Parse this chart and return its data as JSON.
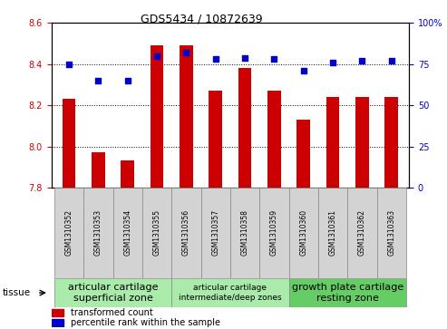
{
  "title": "GDS5434 / 10872639",
  "samples": [
    "GSM1310352",
    "GSM1310353",
    "GSM1310354",
    "GSM1310355",
    "GSM1310356",
    "GSM1310357",
    "GSM1310358",
    "GSM1310359",
    "GSM1310360",
    "GSM1310361",
    "GSM1310362",
    "GSM1310363"
  ],
  "transformed_count": [
    8.23,
    7.97,
    7.93,
    8.49,
    8.49,
    8.27,
    8.38,
    8.27,
    8.13,
    8.24,
    8.24,
    8.24
  ],
  "percentile_rank": [
    75,
    65,
    65,
    80,
    82,
    78,
    79,
    78,
    71,
    76,
    77,
    77
  ],
  "ylim_left": [
    7.8,
    8.6
  ],
  "ylim_right": [
    0,
    100
  ],
  "yticks_left": [
    7.8,
    8.0,
    8.2,
    8.4,
    8.6
  ],
  "yticks_right": [
    0,
    25,
    50,
    75,
    100
  ],
  "bar_color": "#cc0000",
  "dot_color": "#0000cc",
  "tissue_groups": [
    {
      "label": "articular cartilage\nsuperficial zone",
      "start": 0,
      "end": 4,
      "color": "#aaeaaa",
      "fontsize": 8
    },
    {
      "label": "articular cartilage\nintermediate/deep zones",
      "start": 4,
      "end": 8,
      "color": "#aaeaaa",
      "fontsize": 6.5
    },
    {
      "label": "growth plate cartilage\nresting zone",
      "start": 8,
      "end": 12,
      "color": "#66cc66",
      "fontsize": 8
    }
  ],
  "tissue_label": "tissue",
  "legend_red": "transformed count",
  "legend_blue": "percentile rank within the sample",
  "bar_width": 0.45,
  "axis_label_color_left": "#cc0000",
  "axis_label_color_right": "#0000cc",
  "sample_box_color": "#d3d3d3",
  "title_fontsize": 9,
  "ytick_fontsize": 7,
  "sample_label_fontsize": 5.5,
  "legend_fontsize": 7
}
